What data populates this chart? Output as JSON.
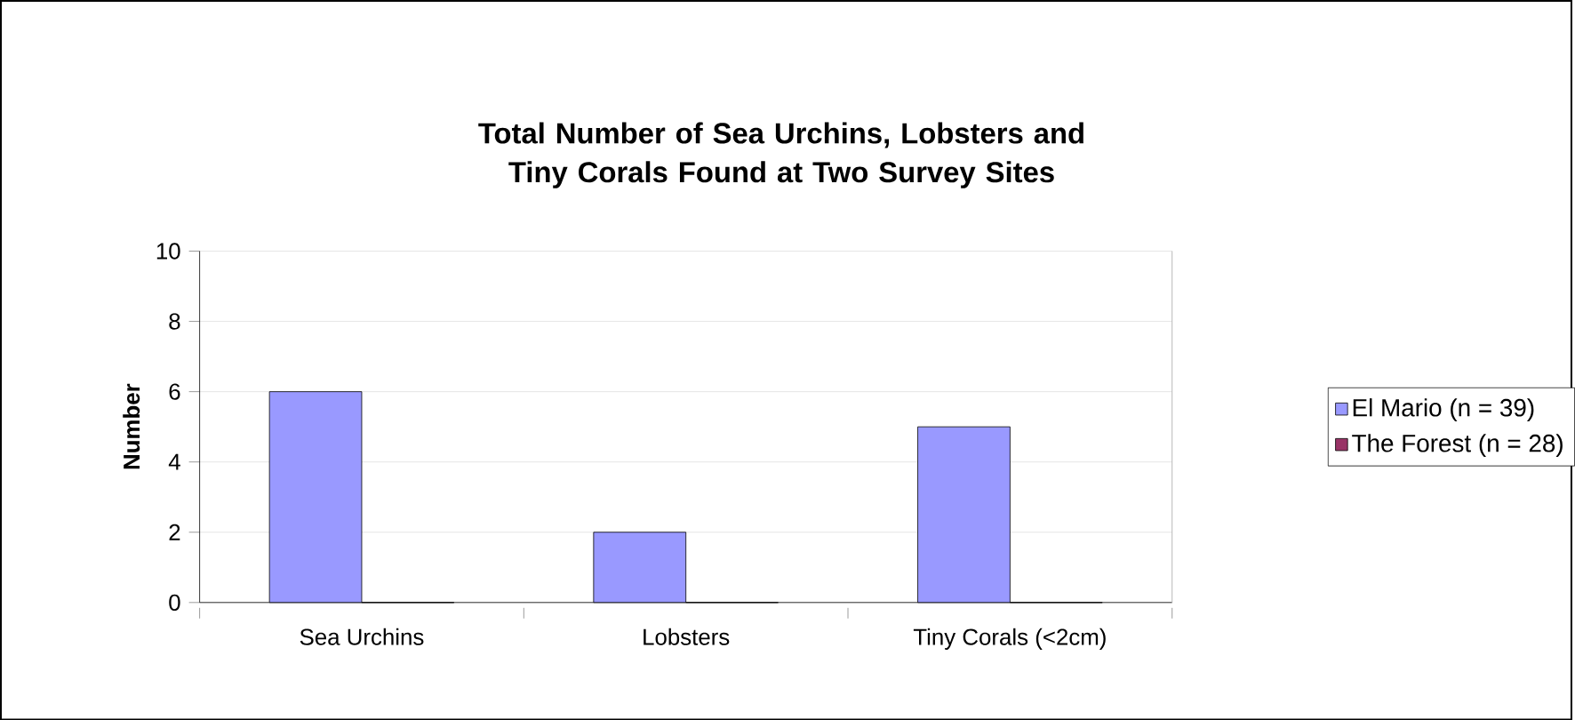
{
  "chart_data": {
    "type": "bar",
    "title": "Total Number of Sea Urchins, Lobsters and Tiny Corals Found at Two Survey Sites",
    "ylabel": "Number",
    "categories": [
      "Sea Urchins",
      "Lobsters",
      "Tiny Corals (<2cm)"
    ],
    "series": [
      {
        "name": "El Mario (n = 39)",
        "color": "#9999ff",
        "values": [
          6,
          2,
          5
        ]
      },
      {
        "name": "The Forest (n = 28)",
        "color": "#993366",
        "values": [
          0,
          0,
          0
        ]
      }
    ],
    "ylim": [
      0,
      10
    ],
    "yticks": [
      0,
      2,
      4,
      6,
      8,
      10
    ],
    "grid": "y",
    "legend": "right"
  }
}
